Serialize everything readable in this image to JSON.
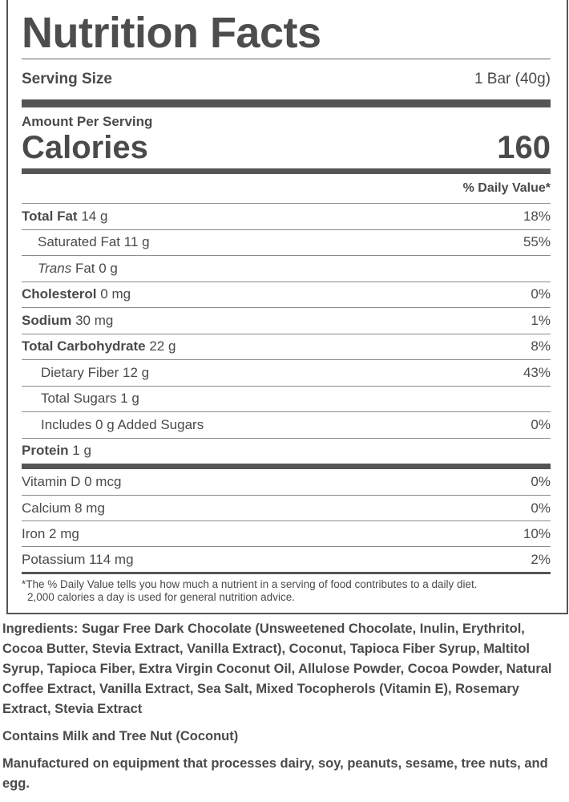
{
  "title": "Nutrition Facts",
  "serving": {
    "label": "Serving Size",
    "value": "1 Bar (40g)"
  },
  "amount_per_serving": "Amount Per Serving",
  "calories": {
    "label": "Calories",
    "value": "160"
  },
  "dv_header": "% Daily Value*",
  "nutrients": [
    {
      "name": "Total Fat",
      "amount": "14 g",
      "dv": "18%"
    },
    {
      "name": "Saturated Fat",
      "amount": "11 g",
      "dv": "55%"
    },
    {
      "name": "Trans",
      "suffix": "Fat",
      "amount": "0 g",
      "dv": ""
    },
    {
      "name": "Cholesterol",
      "amount": "0 mg",
      "dv": "0%"
    },
    {
      "name": "Sodium",
      "amount": "30 mg",
      "dv": "1%"
    },
    {
      "name": "Total Carbohydrate",
      "amount": "22 g",
      "dv": "8%"
    },
    {
      "name": "Dietary Fiber",
      "amount": "12 g",
      "dv": "43%"
    },
    {
      "name": "Total Sugars",
      "amount": "1 g",
      "dv": ""
    },
    {
      "name": "Includes 0 g Added Sugars",
      "amount": "",
      "dv": "0%"
    },
    {
      "name": "Protein",
      "amount": "1 g",
      "dv": ""
    }
  ],
  "vitamins": [
    {
      "text": "Vitamin D 0 mcg",
      "dv": "0%"
    },
    {
      "text": "Calcium 8 mg",
      "dv": "0%"
    },
    {
      "text": "Iron 2 mg",
      "dv": "10%"
    },
    {
      "text": "Potassium 114 mg",
      "dv": "2%"
    }
  ],
  "footnote": {
    "line1": "*The % Daily Value tells you how much a nutrient in a serving of food contributes to a daily diet.",
    "line2": "2,000 calories a day is used for general nutrition advice."
  },
  "ingredients": "Ingredients: Sugar Free Dark Chocolate (Unsweetened Chocolate, Inulin, Erythritol, Cocoa Butter, Stevia Extract, Vanilla Extract), Coconut, Tapioca Fiber Syrup, Maltitol Syrup, Tapioca Fiber, Extra Virgin Coconut Oil, Allulose Powder, Cocoa Powder, Natural Coffee Extract, Vanilla Extract, Sea Salt, Mixed Tocopherols (Vitamin E), Rosemary Extract, Stevia Extract",
  "allergens": "Contains Milk and Tree Nut (Coconut)",
  "manufacturing": "Manufactured on equipment that processes dairy, soy, peanuts, sesame, tree nuts, and egg."
}
